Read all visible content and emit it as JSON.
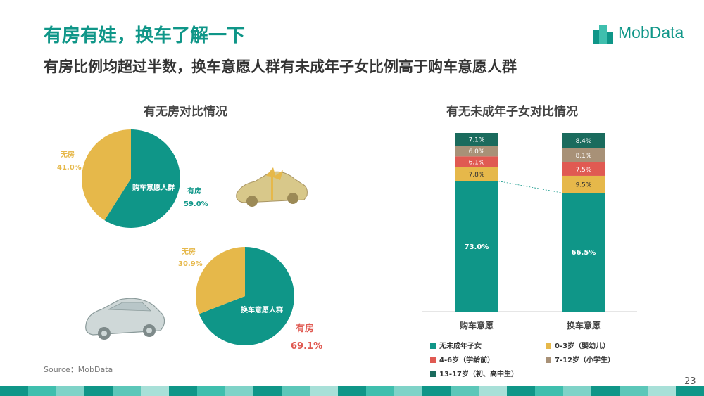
{
  "header": {
    "title": "有房有娃，换车了解一下",
    "subtitle": "有房比例均超过半数，换车意愿人群有未成年子女比例高于购车意愿人群",
    "logo_text": "MobData"
  },
  "colors": {
    "teal": "#0f9688",
    "yellow": "#e6b84a",
    "red": "#e05a52",
    "taupe": "#a89177",
    "dark_teal": "#1a6b5d"
  },
  "left_panel": {
    "title": "有无房对比情况"
  },
  "right_panel": {
    "title": "有无未成年子女对比情况"
  },
  "source": "Source：MobData",
  "page_number": "23",
  "chart_data": [
    {
      "type": "pie",
      "title": "有无房对比情况",
      "center_label": "购车意愿人群",
      "slices": [
        {
          "label": "有房",
          "value": 59.0,
          "value_text": "59.0%",
          "color": "#0f9688"
        },
        {
          "label": "无房",
          "value": 41.0,
          "value_text": "41.0%",
          "color": "#e6b84a"
        }
      ]
    },
    {
      "type": "pie",
      "center_label": "换车意愿人群",
      "slices": [
        {
          "label": "有房",
          "value": 69.1,
          "value_text": "69.1%",
          "color": "#0f9688"
        },
        {
          "label": "无房",
          "value": 30.9,
          "value_text": "30.9%",
          "color": "#e6b84a"
        }
      ]
    },
    {
      "type": "bar",
      "stacked": true,
      "title": "有无未成年子女对比情况",
      "categories": [
        "购车意愿",
        "换车意愿"
      ],
      "series": [
        {
          "name": "无未成年子女",
          "color": "#0f9688",
          "values": [
            73.0,
            66.5
          ]
        },
        {
          "name": "0-3岁（婴幼儿）",
          "color": "#e6b84a",
          "values": [
            7.8,
            9.5
          ]
        },
        {
          "name": "4-6岁（学龄前）",
          "color": "#e05a52",
          "values": [
            6.1,
            7.5
          ]
        },
        {
          "name": "7-12岁（小学生）",
          "color": "#a89177",
          "values": [
            6.0,
            8.1
          ]
        },
        {
          "name": "13-17岁（初、高中生）",
          "color": "#1a6b5d",
          "values": [
            7.1,
            8.4
          ]
        }
      ],
      "legend_position": "bottom"
    }
  ]
}
